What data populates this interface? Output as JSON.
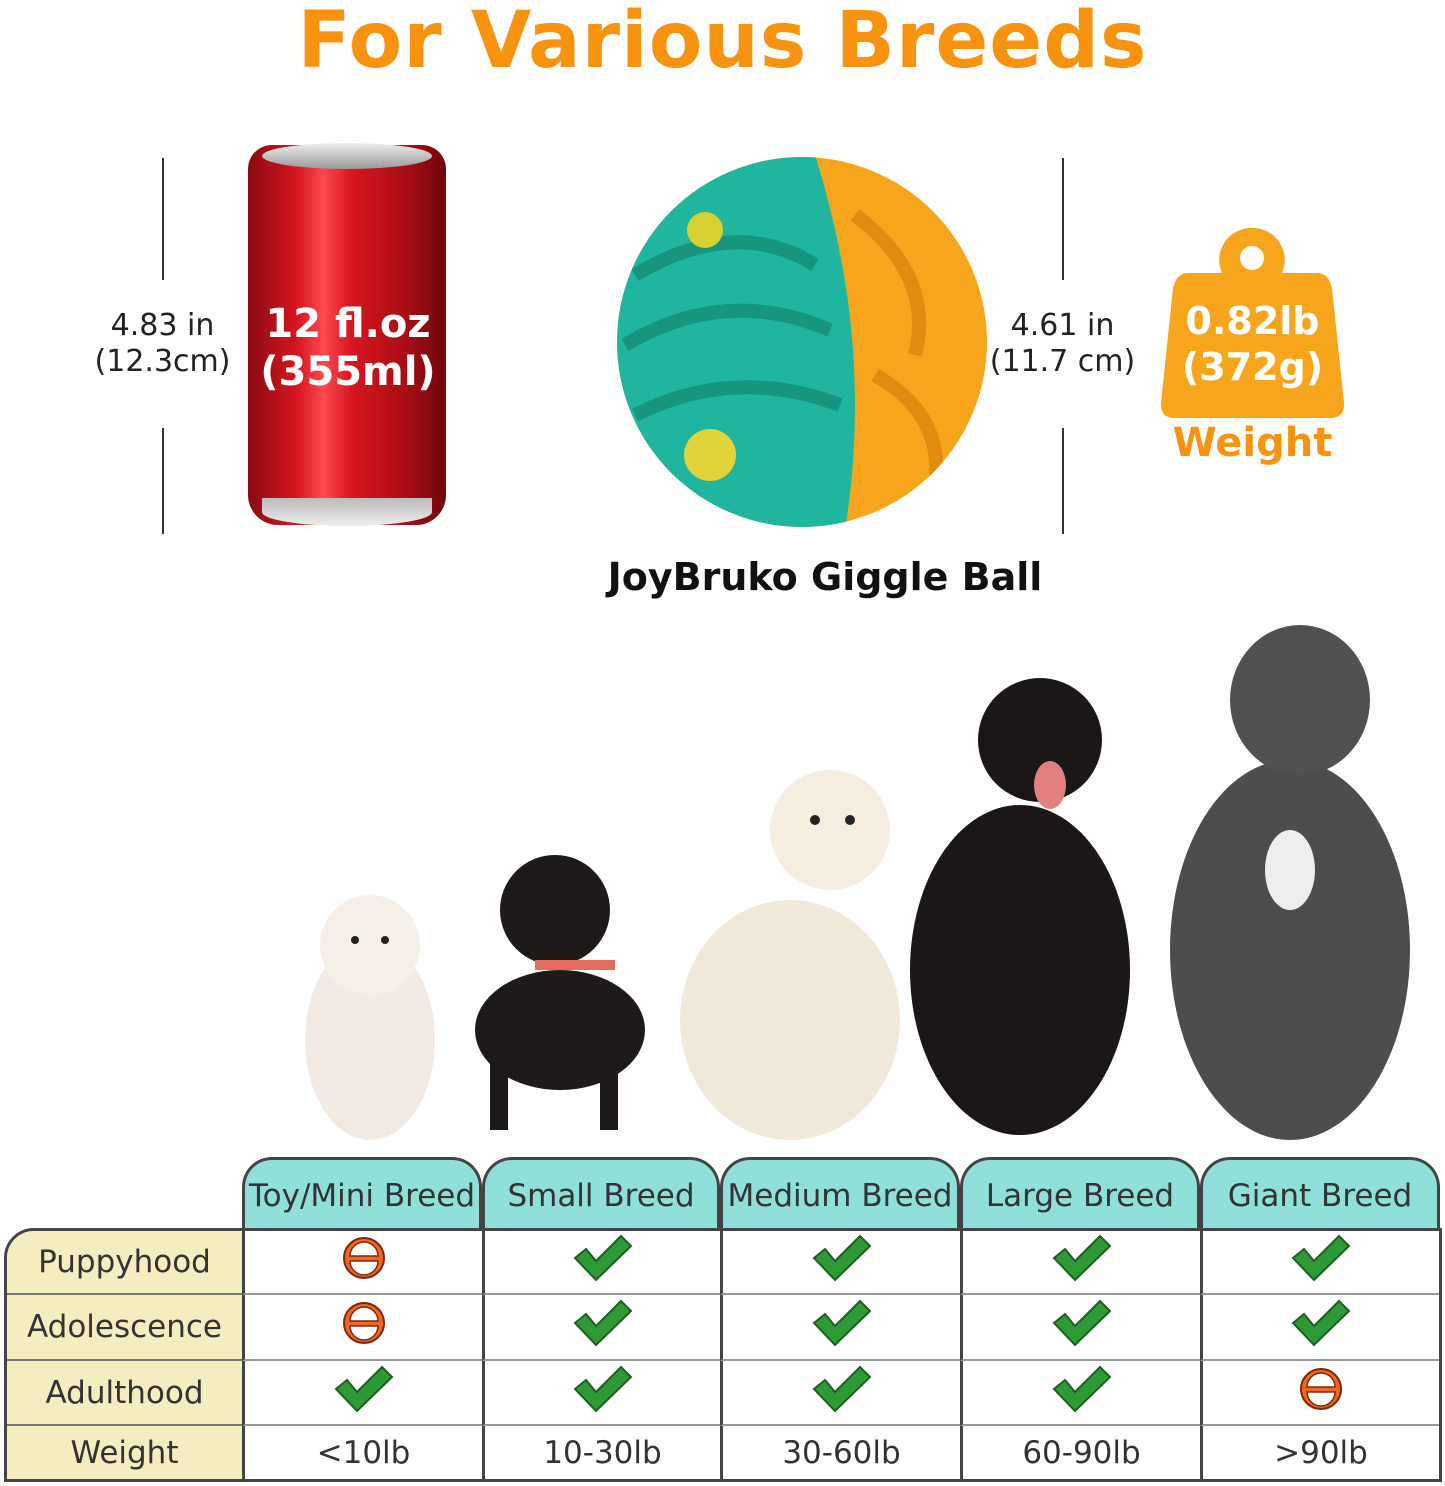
{
  "title": "For Various Breeds",
  "can": {
    "height_in": "4.83 in",
    "height_cm": "(12.3cm)",
    "volume_oz": "12 fl.oz",
    "volume_ml": "(355ml)"
  },
  "ball": {
    "name": "JoyBruko Giggle Ball",
    "height_in": "4.61 in",
    "height_cm": "(11.7 cm)",
    "colors": {
      "teal": "#1fb59e",
      "orange": "#f7a51c"
    }
  },
  "weight": {
    "lb": "0.82lb",
    "g": "(372g)",
    "label": "Weight"
  },
  "colors": {
    "accent": "#f7930f",
    "header": "#8fe0da",
    "row_label": "#f4edbf",
    "check": "#2e9a35",
    "caution": "#f26522"
  },
  "table": {
    "columns": [
      "Toy/Mini Breed",
      "Small Breed",
      "Medium Breed",
      "Large Breed",
      "Giant Breed"
    ],
    "rows": [
      {
        "label": "Puppyhood",
        "values": [
          "caution-icon",
          "check-icon",
          "check-icon",
          "check-icon",
          "check-icon"
        ]
      },
      {
        "label": "Adolescence",
        "values": [
          "caution-icon",
          "check-icon",
          "check-icon",
          "check-icon",
          "check-icon"
        ]
      },
      {
        "label": "Adulthood",
        "values": [
          "check-icon",
          "check-icon",
          "check-icon",
          "check-icon",
          "caution-icon"
        ]
      }
    ],
    "weight_label": "Weight",
    "weights": [
      "<10lb",
      "10-30lb",
      "30-60lb",
      "60-90lb",
      ">90lb"
    ]
  }
}
